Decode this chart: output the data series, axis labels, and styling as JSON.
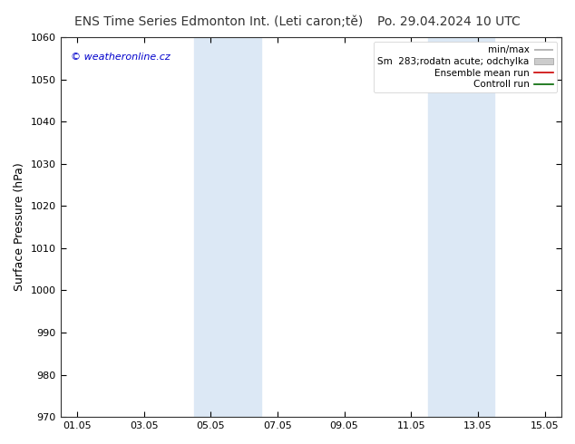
{
  "title_left": "ENS Time Series Edmonton Int. (Leti caron;tě)",
  "title_right": "Po. 29.04.2024 10 UTC",
  "ylabel": "Surface Pressure (hPa)",
  "ylim": [
    970,
    1060
  ],
  "yticks": [
    970,
    980,
    990,
    1000,
    1010,
    1020,
    1030,
    1040,
    1050,
    1060
  ],
  "xlim": [
    -0.5,
    14.5
  ],
  "xtick_labels": [
    "01.05",
    "03.05",
    "05.05",
    "07.05",
    "09.05",
    "11.05",
    "13.05",
    "15.05"
  ],
  "xtick_positions": [
    0,
    2,
    4,
    6,
    8,
    10,
    12,
    14
  ],
  "blue_bands": [
    {
      "x_start": 3.5,
      "x_end": 5.5
    },
    {
      "x_start": 10.5,
      "x_end": 12.5
    }
  ],
  "watermark": "© weatheronline.cz",
  "watermark_color": "#0000cc",
  "legend_labels": [
    "min/max",
    "Sm  283;rodatn acute; odchylka",
    "Ensemble mean run",
    "Controll run"
  ],
  "background_color": "#ffffff",
  "band_color": "#dce8f5",
  "title_fontsize": 10,
  "axis_fontsize": 9,
  "tick_fontsize": 8
}
